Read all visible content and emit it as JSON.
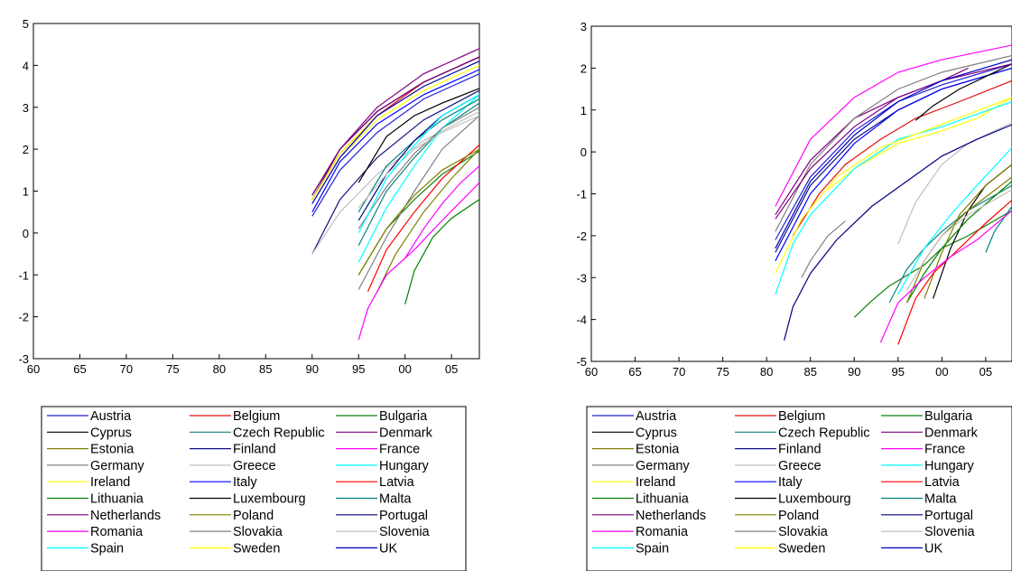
{
  "chart_data": [
    {
      "type": "line",
      "xlim": [
        1960,
        2008
      ],
      "ylim": [
        -3,
        5
      ],
      "x_ticks": [
        1960,
        1965,
        1970,
        1975,
        1980,
        1985,
        1990,
        1995,
        2000,
        2005
      ],
      "x_tick_labels": [
        "60",
        "65",
        "70",
        "75",
        "80",
        "85",
        "90",
        "95",
        "00",
        "05"
      ],
      "y_ticks": [
        -3,
        -2,
        -1,
        0,
        1,
        2,
        3,
        4,
        5
      ],
      "y_tick_labels": [
        "-3",
        "-2",
        "-1",
        "0",
        "1",
        "2",
        "3",
        "4",
        "5"
      ],
      "grid": false,
      "legend": "bottom",
      "series": [
        {
          "name": "Austria",
          "color": "#2323d8",
          "x": [
            1990,
            1993,
            1997,
            2002,
            2008
          ],
          "y": [
            0.4,
            1.5,
            2.4,
            3.2,
            3.8
          ]
        },
        {
          "name": "Belgium",
          "color": "#e01010",
          "x": [
            1990,
            1993,
            1997,
            2002,
            2008
          ],
          "y": [
            0.8,
            1.9,
            2.8,
            3.6,
            4.2
          ]
        },
        {
          "name": "Bulgaria",
          "color": "#108010",
          "x": [
            1995,
            1998,
            2001,
            2004,
            2008
          ],
          "y": [
            -1.0,
            0.1,
            0.8,
            1.4,
            1.95
          ]
        },
        {
          "name": "Cyprus",
          "color": "#000000",
          "x": [
            1990,
            1993,
            1997,
            2002,
            2008
          ],
          "y": [
            0.9,
            2.0,
            2.9,
            3.6,
            4.2
          ]
        },
        {
          "name": "Czech Republic",
          "color": "#108080",
          "x": [
            1995,
            1998,
            2001,
            2004,
            2008
          ],
          "y": [
            -0.3,
            1.0,
            1.8,
            2.5,
            3.1
          ]
        },
        {
          "name": "Denmark",
          "color": "#800080",
          "x": [
            1990,
            1993,
            1997,
            2002,
            2008
          ],
          "y": [
            0.8,
            2.0,
            3.0,
            3.8,
            4.4
          ]
        },
        {
          "name": "Estonia",
          "color": "#808000",
          "x": [
            1997,
            1999,
            2002,
            2005,
            2008
          ],
          "y": [
            -1.4,
            -0.5,
            0.5,
            1.3,
            2.0
          ]
        },
        {
          "name": "Finland",
          "color": "#101080",
          "x": [
            1990,
            1993,
            1997,
            2002,
            2008
          ],
          "y": [
            -0.5,
            0.8,
            1.8,
            2.7,
            3.4
          ]
        },
        {
          "name": "France",
          "color": "#ff00ff",
          "x": [
            1995,
            1996,
            1998,
            2001,
            2004,
            2008
          ],
          "y": [
            -2.55,
            -1.8,
            -1.0,
            -0.4,
            0.3,
            1.2
          ]
        },
        {
          "name": "Germany",
          "color": "#808080",
          "x": [
            1995,
            1998,
            2001,
            2004,
            2008
          ],
          "y": [
            -1.35,
            -0.1,
            1.0,
            2.0,
            2.8
          ]
        },
        {
          "name": "Greece",
          "color": "#c0c0c0",
          "x": [
            1990,
            1993,
            1997,
            2002,
            2008
          ],
          "y": [
            -0.5,
            0.5,
            1.4,
            2.2,
            2.9
          ]
        },
        {
          "name": "Hungary",
          "color": "#00ffff",
          "x": [
            1995,
            1998,
            2001,
            2004,
            2008
          ],
          "y": [
            -0.7,
            0.6,
            1.6,
            2.5,
            3.3
          ]
        },
        {
          "name": "Ireland",
          "color": "#ffff00",
          "x": [
            1990,
            1993,
            1997,
            2002,
            2008
          ],
          "y": [
            0.8,
            1.9,
            2.8,
            3.5,
            4.1
          ]
        },
        {
          "name": "Italy",
          "color": "#0000ff",
          "x": [
            1990,
            1993,
            1997,
            2002,
            2008
          ],
          "y": [
            0.5,
            1.7,
            2.6,
            3.3,
            3.9
          ]
        },
        {
          "name": "Latvia",
          "color": "#ff0000",
          "x": [
            1996,
            1998,
            2001,
            2004,
            2008
          ],
          "y": [
            -1.4,
            -0.4,
            0.5,
            1.3,
            2.1
          ]
        },
        {
          "name": "Lithuania",
          "color": "#008000",
          "x": [
            2000,
            2001,
            2003,
            2005,
            2008
          ],
          "y": [
            -1.7,
            -0.9,
            -0.1,
            0.35,
            0.8
          ]
        },
        {
          "name": "Luxembourg",
          "color": "#000000",
          "x": [
            1995,
            1998,
            2001,
            2004,
            2008
          ],
          "y": [
            1.2,
            2.3,
            2.8,
            3.1,
            3.45
          ]
        },
        {
          "name": "Malta",
          "color": "#008080",
          "x": [
            1995,
            1998,
            2001,
            2004,
            2008
          ],
          "y": [
            0.5,
            1.6,
            2.2,
            2.7,
            3.2
          ]
        },
        {
          "name": "Netherlands",
          "color": "#800080",
          "x": [
            1990,
            1993,
            1997,
            2002,
            2008
          ],
          "y": [
            0.9,
            2.0,
            2.9,
            3.6,
            4.2
          ]
        },
        {
          "name": "Poland",
          "color": "#808000",
          "x": [
            1995,
            1998,
            2001,
            2004,
            2008
          ],
          "y": [
            -1.0,
            0.1,
            0.9,
            1.5,
            2.0
          ]
        },
        {
          "name": "Portugal",
          "color": "#000080",
          "x": [
            1995,
            1998,
            2001,
            2004,
            2008
          ],
          "y": [
            0.3,
            1.4,
            2.2,
            2.8,
            3.3
          ]
        },
        {
          "name": "Romania",
          "color": "#ff00ff",
          "x": [
            2000,
            2002,
            2004,
            2006,
            2008
          ],
          "y": [
            -0.6,
            0.1,
            0.7,
            1.2,
            1.6
          ]
        },
        {
          "name": "Slovakia",
          "color": "#808080",
          "x": [
            1995,
            1998,
            2001,
            2004,
            2008
          ],
          "y": [
            0.1,
            1.1,
            1.9,
            2.5,
            3.0
          ]
        },
        {
          "name": "Slovenia",
          "color": "#c0c0c0",
          "x": [
            1995,
            1998,
            2001,
            2004,
            2008
          ],
          "y": [
            0.6,
            1.4,
            2.0,
            2.4,
            2.8
          ]
        },
        {
          "name": "Spain",
          "color": "#00ffff",
          "x": [
            1995,
            1998,
            2001,
            2004,
            2008
          ],
          "y": [
            0.0,
            1.3,
            2.1,
            2.8,
            3.3
          ]
        },
        {
          "name": "Sweden",
          "color": "#ffff00",
          "x": [
            1990,
            1993,
            1997,
            2002,
            2008
          ],
          "y": [
            0.7,
            1.8,
            2.7,
            3.4,
            4.0
          ]
        },
        {
          "name": "UK",
          "color": "#0000c0",
          "x": [
            1990,
            1993,
            1997,
            2002,
            2008
          ],
          "y": [
            0.7,
            1.8,
            2.8,
            3.5,
            4.1
          ]
        }
      ]
    },
    {
      "type": "line",
      "xlim": [
        1960,
        2008
      ],
      "ylim": [
        -5,
        3
      ],
      "x_ticks": [
        1960,
        1965,
        1970,
        1975,
        1980,
        1985,
        1990,
        1995,
        2000,
        2005
      ],
      "x_tick_labels": [
        "60",
        "65",
        "70",
        "75",
        "80",
        "85",
        "90",
        "95",
        "00",
        "05"
      ],
      "y_ticks": [
        -5,
        -4,
        -3,
        -2,
        -1,
        0,
        1,
        2,
        3
      ],
      "y_tick_labels": [
        "-5",
        "-4",
        "-3",
        "-2",
        "-1",
        "0",
        "1",
        "2",
        "3"
      ],
      "grid": false,
      "legend": "bottom",
      "series": [
        {
          "name": "Austria",
          "color": "#2323d8",
          "x": [
            1981,
            1985,
            1990,
            1995,
            2000,
            2008
          ],
          "y": [
            -2.1,
            -0.6,
            0.5,
            1.2,
            1.6,
            2.1
          ]
        },
        {
          "name": "Belgium",
          "color": "#e01010",
          "x": [
            1983,
            1986,
            1989,
            1993,
            1997,
            2002,
            2008
          ],
          "y": [
            -2.0,
            -1.0,
            -0.3,
            0.3,
            0.8,
            1.2,
            1.7
          ]
        },
        {
          "name": "Bulgaria",
          "color": "#108010",
          "x": [
            1990,
            1992,
            1994,
            1996,
            1998,
            2000,
            2003,
            2008
          ],
          "y": [
            -3.95,
            -3.55,
            -3.2,
            -2.95,
            -2.7,
            -2.3,
            -2.0,
            -1.4
          ]
        },
        {
          "name": "Cyprus",
          "color": "#000000",
          "x": [
            1999,
            2001,
            2003,
            2005,
            2008
          ],
          "y": [
            -3.5,
            -2.3,
            -1.4,
            -0.8,
            -0.3
          ]
        },
        {
          "name": "Czech Republic",
          "color": "#108080",
          "x": [
            1994,
            1996,
            1998,
            2000,
            2003,
            2008
          ],
          "y": [
            -3.6,
            -2.8,
            -2.3,
            -1.9,
            -1.4,
            -0.8
          ]
        },
        {
          "name": "Denmark",
          "color": "#800080",
          "x": [
            1981,
            1985,
            1990,
            1995,
            2000,
            2003
          ],
          "y": [
            -1.5,
            -0.2,
            0.8,
            1.3,
            1.7,
            2.0
          ]
        },
        {
          "name": "Estonia",
          "color": "#808000",
          "x": [
            1998,
            2000,
            2002,
            2005,
            2008
          ],
          "y": [
            -3.5,
            -2.4,
            -1.5,
            -0.8,
            -0.3
          ]
        },
        {
          "name": "Finland",
          "color": "#101080",
          "x": [
            1981,
            1985,
            1990,
            1995,
            2000,
            2008
          ],
          "y": [
            -2.4,
            -0.8,
            0.3,
            1.0,
            1.5,
            2.0
          ]
        },
        {
          "name": "France",
          "color": "#ff00ff",
          "x": [
            1981,
            1985,
            1990,
            1995,
            2000,
            2008
          ],
          "y": [
            -1.3,
            0.3,
            1.3,
            1.9,
            2.2,
            2.55
          ]
        },
        {
          "name": "Germany",
          "color": "#808080",
          "x": [
            1981,
            1985,
            1990,
            1995,
            2000,
            2008
          ],
          "y": [
            -1.9,
            -0.3,
            0.8,
            1.5,
            1.9,
            2.3
          ]
        },
        {
          "name": "Greece",
          "color": "#c0c0c0",
          "x": [
            1995,
            1997,
            2000,
            2003,
            2008
          ],
          "y": [
            -2.2,
            -1.2,
            -0.3,
            0.2,
            0.7
          ]
        },
        {
          "name": "Hungary",
          "color": "#00ffff",
          "x": [
            1995,
            1998,
            2001,
            2004,
            2008
          ],
          "y": [
            -3.4,
            -2.3,
            -1.5,
            -0.8,
            0.1
          ]
        },
        {
          "name": "Ireland",
          "color": "#ffff00",
          "x": [
            1987,
            1990,
            1995,
            2000,
            2004,
            2008
          ],
          "y": [
            -0.9,
            -0.4,
            0.2,
            0.5,
            0.8,
            1.3
          ]
        },
        {
          "name": "Italy",
          "color": "#0000ff",
          "x": [
            1981,
            1985,
            1990,
            1995,
            2000,
            2008
          ],
          "y": [
            -2.6,
            -1.0,
            0.2,
            1.0,
            1.5,
            2.0
          ]
        },
        {
          "name": "Latvia",
          "color": "#ff0000",
          "x": [
            1995,
            1997,
            1999,
            2002,
            2005,
            2008
          ],
          "y": [
            -4.6,
            -3.5,
            -2.9,
            -2.3,
            -1.7,
            -1.15
          ]
        },
        {
          "name": "Lithuania",
          "color": "#008000",
          "x": [
            1996,
            1998,
            2000,
            2003,
            2008
          ],
          "y": [
            -3.6,
            -2.9,
            -2.3,
            -1.6,
            -0.7
          ]
        },
        {
          "name": "Luxembourg",
          "color": "#000000",
          "x": [
            1997,
            1999,
            2002,
            2005,
            2008
          ],
          "y": [
            0.75,
            1.1,
            1.5,
            1.8,
            2.1
          ]
        },
        {
          "name": "Malta",
          "color": "#008080",
          "x": [
            2005,
            2006,
            2007,
            2008
          ],
          "y": [
            -2.4,
            -1.9,
            -1.6,
            -1.3
          ]
        },
        {
          "name": "Netherlands",
          "color": "#800080",
          "x": [
            1981,
            1985,
            1990,
            1995,
            2000,
            2008
          ],
          "y": [
            -1.6,
            -0.4,
            0.6,
            1.3,
            1.7,
            2.1
          ]
        },
        {
          "name": "Poland",
          "color": "#808000",
          "x": [
            1996,
            1998,
            2000,
            2003,
            2008
          ],
          "y": [
            -3.6,
            -2.6,
            -2.0,
            -1.4,
            -0.6
          ]
        },
        {
          "name": "Portugal",
          "color": "#000080",
          "x": [
            1982,
            1983,
            1985,
            1988,
            1992,
            1996,
            2000,
            2004,
            2008
          ],
          "y": [
            -4.5,
            -3.7,
            -2.9,
            -2.1,
            -1.3,
            -0.7,
            -0.1,
            0.3,
            0.65
          ]
        },
        {
          "name": "Romania",
          "color": "#ff00ff",
          "x": [
            1993,
            1995,
            1998,
            2001,
            2004,
            2008
          ],
          "y": [
            -4.55,
            -3.6,
            -3.0,
            -2.5,
            -2.1,
            -1.4
          ]
        },
        {
          "name": "Slovakia",
          "color": "#808080",
          "x": [
            1984,
            1985,
            1987,
            1989
          ],
          "y": [
            -3.0,
            -2.6,
            -2.0,
            -1.65
          ]
        },
        {
          "name": "Slovenia",
          "color": "#c0c0c0",
          "x": [
            1996,
            1998,
            2000,
            2003,
            2008
          ],
          "y": [
            -3.3,
            -2.6,
            -2.0,
            -1.5,
            -0.9
          ]
        },
        {
          "name": "Spain",
          "color": "#00ffff",
          "x": [
            1981,
            1983,
            1985,
            1990,
            1995,
            2000,
            2008
          ],
          "y": [
            -3.4,
            -2.2,
            -1.5,
            -0.4,
            0.3,
            0.6,
            1.2
          ]
        },
        {
          "name": "Sweden",
          "color": "#ffff00",
          "x": [
            1981,
            1984,
            1988,
            1993,
            1998,
            2003,
            2008
          ],
          "y": [
            -2.9,
            -1.6,
            -0.6,
            0.1,
            0.5,
            0.9,
            1.3
          ]
        },
        {
          "name": "UK",
          "color": "#0000c0",
          "x": [
            1981,
            1985,
            1990,
            1995,
            2000,
            2008
          ],
          "y": [
            -2.3,
            -0.7,
            0.4,
            1.2,
            1.7,
            2.2
          ]
        }
      ]
    }
  ]
}
